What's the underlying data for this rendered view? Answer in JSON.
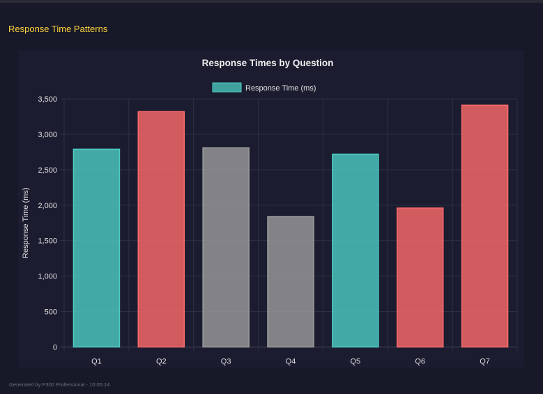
{
  "section": {
    "title": "Response Time Patterns"
  },
  "footer": {
    "text": "Generated by P300 Professional - 10:05:14"
  },
  "chart_data": {
    "type": "bar",
    "title": "Response Times by Question",
    "legend": {
      "position": "top",
      "entries": [
        "Response Time (ms)"
      ]
    },
    "xlabel": "",
    "ylabel": "Response Time (ms)",
    "ylim": [
      0,
      3500
    ],
    "yticks": [
      "0",
      "500",
      "1,000",
      "1,500",
      "2,000",
      "2,500",
      "3,000",
      "3,500"
    ],
    "grid": true,
    "categories": [
      "Q1",
      "Q2",
      "Q3",
      "Q4",
      "Q5",
      "Q6",
      "Q7"
    ],
    "series": [
      {
        "name": "Response Time (ms)",
        "values": [
          2790,
          3320,
          2810,
          1840,
          2720,
          1960,
          3410
        ]
      }
    ],
    "bar_colors": [
      "#4ecdc4",
      "#ff6b6b",
      "#9e9e9e",
      "#9e9e9e",
      "#4ecdc4",
      "#ff6b6b",
      "#ff6b6b"
    ]
  }
}
